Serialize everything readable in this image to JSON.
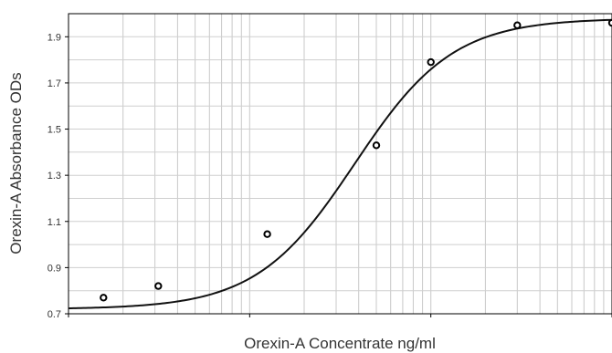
{
  "chart_data": {
    "type": "scatter",
    "title": "",
    "xlabel": "Orexin-A Concentrate ng/ml",
    "ylabel": "Orexin-A Absorbance ODs",
    "x_scale": "log",
    "xlim": [
      0.01,
      10
    ],
    "ylim": [
      0.7,
      2.0
    ],
    "y_ticks": [
      0.7,
      0.9,
      1.1,
      1.3,
      1.5,
      1.7,
      1.9
    ],
    "y_tick_labels": [
      "0.7",
      "0.9",
      "1.1",
      "1.3",
      "1.5",
      "1.7",
      "1.9"
    ],
    "grid": true,
    "series": [
      {
        "points": [
          {
            "x": 0.0156,
            "y": 0.77
          },
          {
            "x": 0.0313,
            "y": 0.82
          },
          {
            "x": 0.125,
            "y": 1.045
          },
          {
            "x": 0.5,
            "y": 1.43
          },
          {
            "x": 1.0,
            "y": 1.79
          },
          {
            "x": 3.0,
            "y": 1.95
          },
          {
            "x": 10.0,
            "y": 1.96
          }
        ]
      }
    ],
    "fit_curve": {
      "type": "4PL",
      "bottom": 0.72,
      "top": 1.98,
      "ec50": 0.38,
      "hill": 1.6
    }
  }
}
